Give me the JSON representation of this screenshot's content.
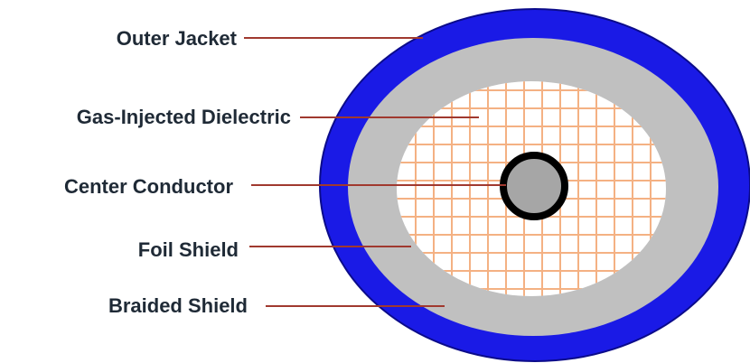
{
  "labels": {
    "outer_jacket": "Outer Jacket",
    "dielectric": "Gas-Injected Dielectric",
    "center_conductor": "Center Conductor",
    "foil_shield": "Foil Shield",
    "braided_shield": "Braided Shield"
  },
  "colors": {
    "outer_jacket": "#1a1ae6",
    "shield": "#c0c0c0",
    "dielectric_bg": "#ffffff",
    "dielectric_grid": "#f4b183",
    "conductor_fill": "#a6a6a6",
    "conductor_ring": "#000000",
    "leader_line": "#a0392f",
    "label_text": "#1f2a36"
  }
}
